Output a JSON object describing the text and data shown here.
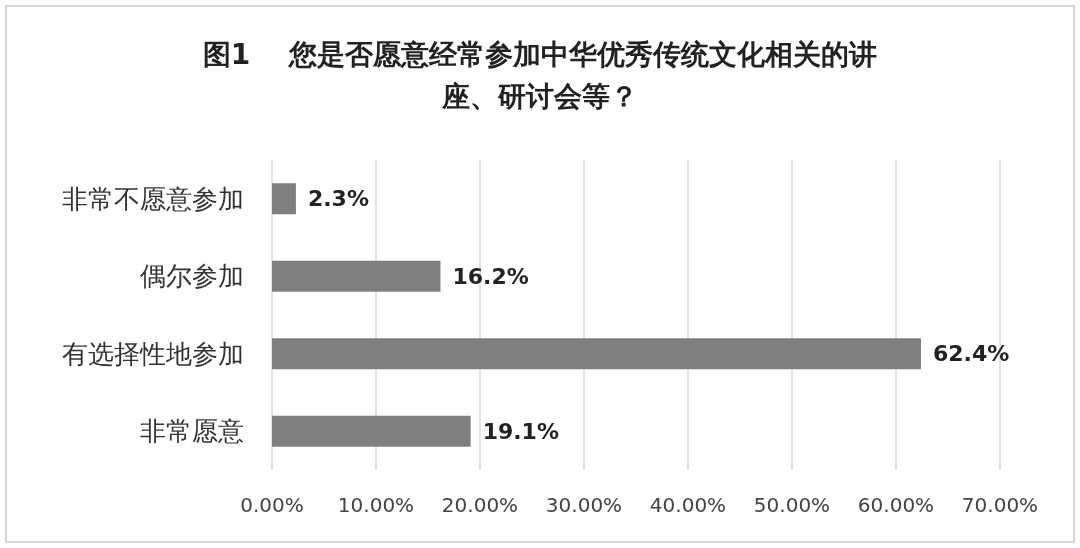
{
  "chart_data": {
    "type": "bar",
    "orientation": "horizontal",
    "title": "图1    您是否愿意经常参加中华优秀传统文化相关的讲座、研讨会等？",
    "categories": [
      "非常不愿意参加",
      "偶尔参加",
      "有选择性地参加",
      "非常愿意"
    ],
    "values": [
      2.3,
      16.2,
      62.4,
      19.1
    ],
    "value_labels": [
      "2.3%",
      "16.2%",
      "62.4%",
      "19.1%"
    ],
    "color": "#7f7f7f",
    "xlim": [
      0,
      70
    ],
    "xticks": [
      {
        "value": 0,
        "label": "0.00%"
      },
      {
        "value": 10,
        "label": "10.00%"
      },
      {
        "value": 20,
        "label": "20.00%"
      },
      {
        "value": 30,
        "label": "30.00%"
      },
      {
        "value": 40,
        "label": "40.00%"
      },
      {
        "value": 50,
        "label": "50.00%"
      },
      {
        "value": 60,
        "label": "60.00%"
      },
      {
        "value": 70,
        "label": "70.00%"
      }
    ],
    "grid": "x"
  }
}
